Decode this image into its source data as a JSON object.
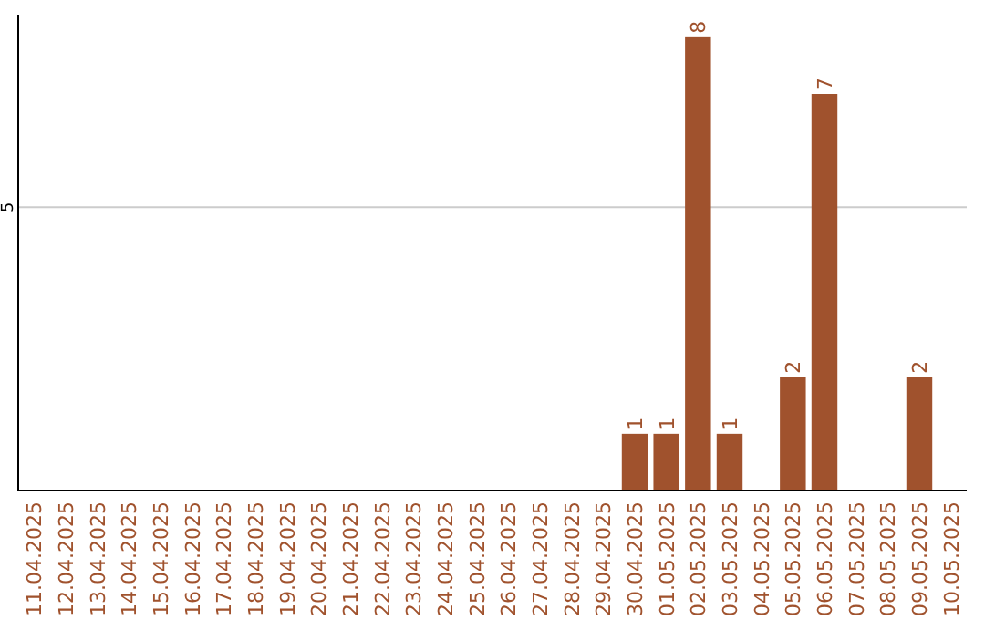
{
  "chart_data": {
    "type": "bar",
    "categories": [
      "11.04.2025",
      "12.04.2025",
      "13.04.2025",
      "14.04.2025",
      "15.04.2025",
      "16.04.2025",
      "17.04.2025",
      "18.04.2025",
      "19.04.2025",
      "20.04.2025",
      "21.04.2025",
      "22.04.2025",
      "23.04.2025",
      "24.04.2025",
      "25.04.2025",
      "26.04.2025",
      "27.04.2025",
      "28.04.2025",
      "29.04.2025",
      "30.04.2025",
      "01.05.2025",
      "02.05.2025",
      "03.05.2025",
      "04.05.2025",
      "05.05.2025",
      "06.05.2025",
      "07.05.2025",
      "08.05.2025",
      "09.05.2025",
      "10.05.2025"
    ],
    "values": [
      null,
      null,
      null,
      null,
      null,
      null,
      null,
      null,
      null,
      null,
      null,
      null,
      null,
      null,
      null,
      null,
      null,
      null,
      null,
      1,
      1,
      8,
      1,
      null,
      2,
      7,
      null,
      null,
      2,
      null
    ],
    "data_labels": true,
    "color": "#a0522d",
    "ylim": [
      0,
      8.4
    ],
    "yticks": [
      5
    ],
    "grid": "y"
  }
}
